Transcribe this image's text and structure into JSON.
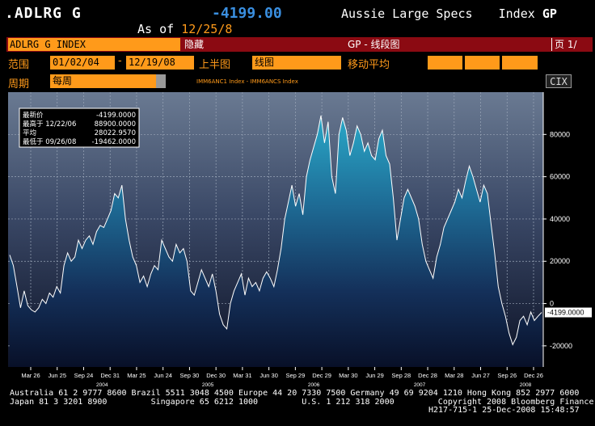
{
  "header": {
    "ticker": ".ADLRG G",
    "last_value": "-4199.00",
    "description": "Aussie Large Specs",
    "index_label": "Index",
    "exchange": "GP",
    "as_of_label": "As of",
    "as_of_date": "12/25/8"
  },
  "title_bar": {
    "title": "ADLRG G INDEX",
    "hide_label": "隐藏",
    "center": "GP - 线段图",
    "page": "页 1/"
  },
  "controls": {
    "range_label": "范围",
    "start_date": "01/02/04",
    "dash": "-",
    "end_date": "12/19/08",
    "upper_label": "上半图",
    "upper_value": "线图",
    "ma_label": "移动平均",
    "period_label": "周期",
    "period_value": "每周",
    "legend_text": "IMM6ANC1 Index - IMM6ANCS Index",
    "cix_label": "CIX"
  },
  "stats_box": {
    "rows": [
      {
        "label": "最新价",
        "value": "-4199.0000"
      },
      {
        "label": "最高于 12/22/06",
        "value": "88900.0000"
      },
      {
        "label": "平均",
        "value": "28022.9570"
      },
      {
        "label": "最低于 09/26/08",
        "value": "-19462.0000"
      }
    ]
  },
  "chart_data": {
    "type": "area",
    "title": "",
    "ylim": [
      -30000,
      100000
    ],
    "y_ticks": [
      "80000",
      "60000",
      "40000",
      "20000",
      "0",
      "-20000"
    ],
    "y_tick_values": [
      80000,
      60000,
      40000,
      20000,
      0,
      -20000
    ],
    "last_label": "-4199.0000",
    "x_tick_labels": [
      "Mar 26",
      "Jun 25",
      "Sep 24",
      "Dec 31",
      "Mar 25",
      "Jun 24",
      "Sep 30",
      "Dec 30",
      "Mar 31",
      "Jun 30",
      "Sep 29",
      "Dec 29",
      "Mar 30",
      "Jun 29",
      "Sep 28",
      "Dec 28",
      "Mar 28",
      "Jun 27",
      "Sep 26",
      "Dec 26"
    ],
    "year_labels": [
      "2004",
      "2005",
      "2006",
      "2007",
      "2008"
    ],
    "series": [
      {
        "values": [
          23000,
          18000,
          8000,
          -2000,
          6000,
          -1000,
          -3000,
          -4000,
          -2000,
          2000,
          0,
          5000,
          3000,
          8000,
          5000,
          18000,
          24000,
          20000,
          22000,
          30000,
          26000,
          30000,
          32000,
          28000,
          34000,
          37000,
          36000,
          40000,
          44000,
          52000,
          50000,
          56000,
          40000,
          30000,
          22000,
          18000,
          10000,
          13000,
          8000,
          14000,
          18000,
          16000,
          30000,
          26000,
          22000,
          20000,
          28000,
          24000,
          26000,
          20000,
          6000,
          4000,
          10000,
          16000,
          12000,
          8000,
          14000,
          6000,
          -5000,
          -10000,
          -12000,
          0,
          6000,
          10000,
          14000,
          4000,
          12000,
          8000,
          10000,
          6000,
          12000,
          15000,
          12000,
          8000,
          16000,
          26000,
          40000,
          48000,
          56000,
          46000,
          52000,
          42000,
          60000,
          68000,
          74000,
          80000,
          88900,
          76000,
          86000,
          60000,
          52000,
          80000,
          88000,
          82000,
          70000,
          76000,
          84000,
          80000,
          72000,
          76000,
          70000,
          68000,
          78000,
          82000,
          70000,
          66000,
          50000,
          30000,
          40000,
          50000,
          54000,
          50000,
          46000,
          40000,
          28000,
          20000,
          16000,
          12000,
          22000,
          28000,
          36000,
          40000,
          44000,
          48000,
          54000,
          50000,
          58000,
          65000,
          60000,
          54000,
          48000,
          56000,
          52000,
          38000,
          24000,
          8000,
          0,
          -6000,
          -14000,
          -19462,
          -16000,
          -8000,
          -6000,
          -10000,
          -4000,
          -8000,
          -6000,
          -4199
        ]
      }
    ]
  },
  "footer": {
    "line1": "Australia 61 2 9777 8600 Brazil 5511 3048 4500 Europe 44 20 7330 7500 Germany 49 69 9204 1210 Hong Kong 852 2977 6000",
    "line2": "Japan 81 3 3201 8900         Singapore 65 6212 1000         U.S. 1 212 318 2000         Copyright 2008 Bloomberg Finance L.P.",
    "line3": "H217-715-1 25-Dec-2008 15:48:57"
  },
  "colors": {
    "orange": "#ff9a1a",
    "title_bar": "#8b0a12",
    "last_value": "#3a8fe0"
  }
}
